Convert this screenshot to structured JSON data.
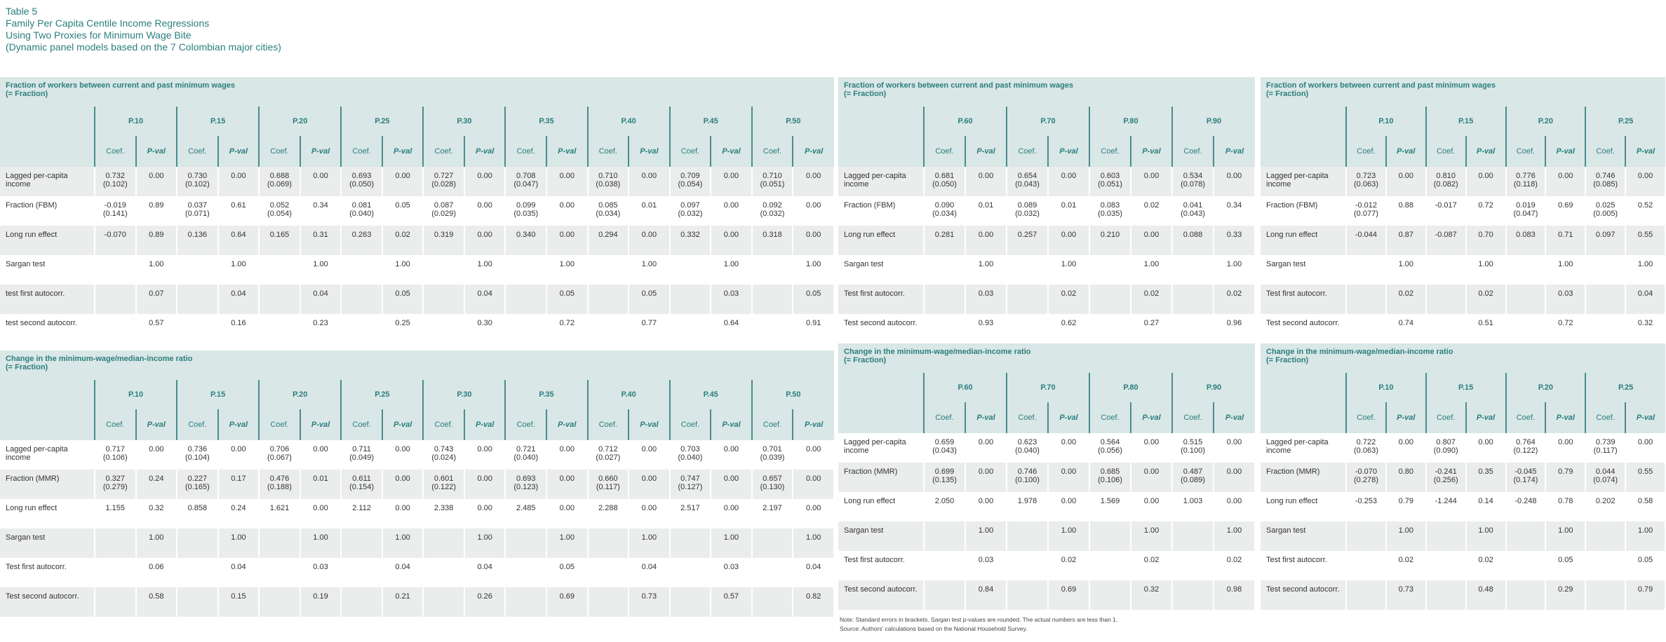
{
  "title": {
    "line1": "Table 5",
    "line2": "Family Per Capita Centile Income Regressions",
    "line3": "Using Two Proxies for Minimum Wage Bite",
    "line4": "(Dynamic panel models based on the 7 Colombian major cities)"
  },
  "coef_label": "Coef.",
  "pval_label": "P-val",
  "panels": [
    {
      "title1": "Fraction of workers between current and past minimum wages",
      "title2": "(= Fraction)",
      "groups": [
        "P.10",
        "P.15",
        "P.20",
        "P.25",
        "P.30",
        "P.35",
        "P.40",
        "P.45",
        "P.50"
      ],
      "rows": [
        {
          "label": "Lagged per-capita income",
          "coef": [
            "0.732",
            "0.730",
            "0.688",
            "0.693",
            "0.727",
            "0.708",
            "0.710",
            "0.709",
            "0.710"
          ],
          "se": [
            "(0.102)",
            "(0.102)",
            "(0.069)",
            "(0.050)",
            "(0.028)",
            "(0.047)",
            "(0.038)",
            "(0.054)",
            "(0.051)"
          ],
          "p": [
            "0.00",
            "0.00",
            "0.00",
            "0.00",
            "0.00",
            "0.00",
            "0.00",
            "0.00",
            "0.00"
          ]
        },
        {
          "label": "Fraction (FBM)",
          "coef": [
            "-0.019",
            "0.037",
            "0.052",
            "0.081",
            "0.087",
            "0.099",
            "0.085",
            "0.097",
            "0.092"
          ],
          "se": [
            "(0.141)",
            "(0.071)",
            "(0.054)",
            "(0.040)",
            "(0.029)",
            "(0.035)",
            "(0.034)",
            "(0.032)",
            "(0.032)"
          ],
          "p": [
            "0.89",
            "0.61",
            "0.34",
            "0.05",
            "0.00",
            "0.00",
            "0.01",
            "0.00",
            "0.00"
          ]
        },
        {
          "label": "Long run effect",
          "coef": [
            "-0.070",
            "0.136",
            "0.165",
            "0.263",
            "0.319",
            "0.340",
            "0.294",
            "0.332",
            "0.318"
          ],
          "p": [
            "0.89",
            "0.64",
            "0.31",
            "0.02",
            "0.00",
            "0.00",
            "0.00",
            "0.00",
            "0.00"
          ]
        },
        {
          "label": "Sargan test",
          "p": [
            "1.00",
            "1.00",
            "1.00",
            "1.00",
            "1.00",
            "1.00",
            "1.00",
            "1.00",
            "1.00"
          ]
        },
        {
          "label": "test first autocorr.",
          "p": [
            "0.07",
            "0.04",
            "0.04",
            "0.05",
            "0.04",
            "0.05",
            "0.05",
            "0.03",
            "0.05"
          ]
        },
        {
          "label": "test second autocorr.",
          "p": [
            "0.57",
            "0.16",
            "0.23",
            "0.25",
            "0.30",
            "0.72",
            "0.77",
            "0.64",
            "0.91"
          ]
        }
      ]
    },
    {
      "title1": "Change in the minimum-wage/median-income ratio",
      "title2": "(= Fraction)",
      "groups": [
        "P.10",
        "P.15",
        "P.20",
        "P.25",
        "P.30",
        "P.35",
        "P.40",
        "P.45",
        "P.50"
      ],
      "rows": [
        {
          "label": "Lagged per-capita income",
          "coef": [
            "0.717",
            "0.736",
            "0.706",
            "0.711",
            "0.743",
            "0.721",
            "0.712",
            "0.703",
            "0.701"
          ],
          "se": [
            "(0.106)",
            "(0.104)",
            "(0.067)",
            "(0.049)",
            "(0.024)",
            "(0.040)",
            "(0.027)",
            "(0.040)",
            "(0.039)"
          ],
          "p": [
            "0.00",
            "0.00",
            "0.00",
            "0.00",
            "0.00",
            "0.00",
            "0.00",
            "0.00",
            "0.00"
          ]
        },
        {
          "label": "Fraction (MMR)",
          "coef": [
            "0.327",
            "0.227",
            "0.476",
            "0.611",
            "0.601",
            "0.693",
            "0.660",
            "0.747",
            "0.657"
          ],
          "se": [
            "(0.279)",
            "(0.165)",
            "(0.188)",
            "(0.154)",
            "(0.122)",
            "(0.123)",
            "(0.117)",
            "(0.127)",
            "(0.130)"
          ],
          "p": [
            "0.24",
            "0.17",
            "0.01",
            "0.00",
            "0.00",
            "0.00",
            "0.00",
            "0.00",
            "0.00"
          ]
        },
        {
          "label": "Long run effect",
          "coef": [
            "1.155",
            "0.858",
            "1.621",
            "2.112",
            "2.338",
            "2.485",
            "2.288",
            "2.517",
            "2.197"
          ],
          "p": [
            "0.32",
            "0.24",
            "0.00",
            "0.00",
            "0.00",
            "0.00",
            "0.00",
            "0.00",
            "0.00"
          ]
        },
        {
          "label": "Sargan test",
          "p": [
            "1.00",
            "1.00",
            "1.00",
            "1.00",
            "1.00",
            "1.00",
            "1.00",
            "1.00",
            "1.00"
          ]
        },
        {
          "label": "Test first autocorr.",
          "p": [
            "0.06",
            "0.04",
            "0.03",
            "0.04",
            "0.04",
            "0.05",
            "0.04",
            "0.03",
            "0.04"
          ]
        },
        {
          "label": "Test second autocorr.",
          "p": [
            "0.58",
            "0.15",
            "0.19",
            "0.21",
            "0.26",
            "0.69",
            "0.73",
            "0.57",
            "0.82"
          ]
        }
      ]
    },
    {
      "title1": "Fraction of workers between current and past minimum wages",
      "title2": "(= Fraction)",
      "groups": [
        "P.60",
        "P.70",
        "P.80",
        "P.90"
      ],
      "rows": [
        {
          "label": "Lagged per-capita income",
          "coef": [
            "0.681",
            "0.654",
            "0.603",
            "0.534"
          ],
          "se": [
            "(0.050)",
            "(0.043)",
            "(0.051)",
            "(0.078)"
          ],
          "p": [
            "0.00",
            "0.00",
            "0.00",
            "0.00"
          ]
        },
        {
          "label": "Fraction (FBM)",
          "coef": [
            "0.090",
            "0.089",
            "0.083",
            "0.041"
          ],
          "se": [
            "(0.034)",
            "(0.032)",
            "(0.035)",
            "(0.043)"
          ],
          "p": [
            "0.01",
            "0.01",
            "0.02",
            "0.34"
          ]
        },
        {
          "label": "Long run effect",
          "coef": [
            "0.281",
            "0.257",
            "0.210",
            "0.088"
          ],
          "p": [
            "0.00",
            "0.00",
            "0.00",
            "0.33"
          ]
        },
        {
          "label": "Sargan test",
          "p": [
            "1.00",
            "1.00",
            "1.00",
            "1.00"
          ]
        },
        {
          "label": "Test first autocorr.",
          "p": [
            "0.03",
            "0.02",
            "0.02",
            "0.02"
          ]
        },
        {
          "label": "Test second autocorr.",
          "p": [
            "0.93",
            "0.62",
            "0.27",
            "0.96"
          ]
        }
      ]
    },
    {
      "title1": "Change in the minimum-wage/median-income ratio",
      "title2": "(= Fraction)",
      "groups": [
        "P.60",
        "P.70",
        "P.80",
        "P.90"
      ],
      "rows": [
        {
          "label": "Lagged per-capita income",
          "coef": [
            "0.659",
            "0.623",
            "0.564",
            "0.515"
          ],
          "se": [
            "(0.043)",
            "(0.040)",
            "(0.056)",
            "(0.100)"
          ],
          "p": [
            "0.00",
            "0.00",
            "0.00",
            "0.00"
          ]
        },
        {
          "label": "Fraction (MMR)",
          "coef": [
            "0.699",
            "0.746",
            "0.685",
            "0.487"
          ],
          "se": [
            "(0.135)",
            "(0.100)",
            "(0.106)",
            "(0.089)"
          ],
          "p": [
            "0.00",
            "0.00",
            "0.00",
            "0.00"
          ]
        },
        {
          "label": "Long run effect",
          "coef": [
            "2.050",
            "1.978",
            "1.569",
            "1.003"
          ],
          "p": [
            "0.00",
            "0.00",
            "0.00",
            "0.00"
          ]
        },
        {
          "label": "Sargan test",
          "p": [
            "1.00",
            "1.00",
            "1.00",
            "1.00"
          ]
        },
        {
          "label": "Test first autocorr.",
          "p": [
            "0.03",
            "0.02",
            "0.02",
            "0.02"
          ]
        },
        {
          "label": "Test second autocorr.",
          "p": [
            "0.84",
            "0.69",
            "0.32",
            "0.98"
          ]
        }
      ]
    },
    {
      "title1": "Fraction of workers between current and past minimum wages",
      "title2": "(= Fraction)",
      "groups": [
        "P.10",
        "P.15",
        "P.20",
        "P.25"
      ],
      "rows": [
        {
          "label": "Lagged per-capita income",
          "coef": [
            "0.723",
            "0.810",
            "0.776",
            "0.746"
          ],
          "se": [
            "(0.063)",
            "(0.082)",
            "(0.118)",
            "(0.085)"
          ],
          "p": [
            "0.00",
            "0.00",
            "0.00",
            "0.00"
          ]
        },
        {
          "label": "Fraction (FBM)",
          "coef": [
            "-0.012",
            "-0.017",
            "0.019",
            "0.025"
          ],
          "se": [
            "(0.077)",
            "",
            "(0.047)",
            "(0.005)"
          ],
          "p": [
            "0.88",
            "0.72",
            "0.69",
            "0.52"
          ]
        },
        {
          "label": "Long run effect",
          "coef": [
            "-0.044",
            "-0.087",
            "0.083",
            "0.097"
          ],
          "p": [
            "0.87",
            "0.70",
            "0.71",
            "0.55"
          ]
        },
        {
          "label": "Sargan test",
          "p": [
            "1.00",
            "1.00",
            "1.00",
            "1.00"
          ]
        },
        {
          "label": "Test first autocorr.",
          "p": [
            "0.02",
            "0.02",
            "0.03",
            "0.04"
          ]
        },
        {
          "label": "Test second autocorr.",
          "p": [
            "0.74",
            "0.51",
            "0.72",
            "0.32"
          ]
        }
      ]
    },
    {
      "title1": "Change in the minimum-wage/median-income ratio",
      "title2": "(= Fraction)",
      "groups": [
        "P.10",
        "P.15",
        "P.20",
        "P.25"
      ],
      "rows": [
        {
          "label": "Lagged per-capita income",
          "coef": [
            "0.722",
            "0.807",
            "0.764",
            "0.739"
          ],
          "se": [
            "(0.063)",
            "(0.090)",
            "(0.122)",
            "(0.117)"
          ],
          "p": [
            "0.00",
            "0.00",
            "0.00",
            "0.00"
          ]
        },
        {
          "label": "Fraction (MMR)",
          "coef": [
            "-0.070",
            "-0.241",
            "-0.045",
            "0.044"
          ],
          "se": [
            "(0.278)",
            "(0.256)",
            "(0.174)",
            "(0.074)"
          ],
          "p": [
            "0.80",
            "0.35",
            "0.79",
            "0.55"
          ]
        },
        {
          "label": "Long run effect",
          "coef": [
            "-0.253",
            "-1.244",
            "-0.248",
            "0.202"
          ],
          "p": [
            "0.79",
            "0.14",
            "0.78",
            "0.58"
          ]
        },
        {
          "label": "Sargan test",
          "p": [
            "1.00",
            "1.00",
            "1.00",
            "1.00"
          ]
        },
        {
          "label": "Test first autocorr.",
          "p": [
            "0.02",
            "0.02",
            "0.05",
            "0.05"
          ]
        },
        {
          "label": "Test second autocorr.",
          "p": [
            "0.73",
            "0.48",
            "0.29",
            "0.79"
          ]
        }
      ]
    }
  ],
  "note": {
    "line1": "Note: Standard errors in brackets. Sargan test p-values are rounded. The actual numbers are less than 1.",
    "line2": "Source: Authors' calculations based on the National Household Survey."
  }
}
